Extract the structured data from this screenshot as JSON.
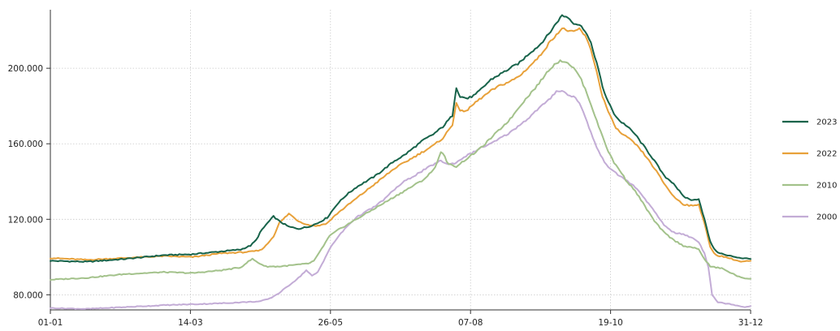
{
  "chart_data": {
    "type": "line",
    "title": "",
    "xlabel": "",
    "ylabel": "",
    "x_tick_labels": [
      "01-01",
      "14-03",
      "26-05",
      "07-08",
      "19-10",
      "31-12"
    ],
    "y_tick_labels": [
      "80.000",
      "120.000",
      "160.000",
      "200.000"
    ],
    "y_ticks": [
      80000,
      120000,
      160000,
      200000
    ],
    "ylim": [
      72000,
      231000
    ],
    "xlim": [
      1,
      365
    ],
    "grid": true,
    "legend_position": "right",
    "series": [
      {
        "name": "2023",
        "color": "#17634a",
        "points": [
          [
            1,
            98000
          ],
          [
            20,
            97500
          ],
          [
            40,
            99000
          ],
          [
            60,
            101000
          ],
          [
            75,
            101500
          ],
          [
            90,
            103000
          ],
          [
            100,
            104000
          ],
          [
            105,
            106000
          ],
          [
            108,
            109000
          ],
          [
            110,
            113000
          ],
          [
            113,
            117000
          ],
          [
            117,
            121500
          ],
          [
            120,
            119000
          ],
          [
            125,
            116000
          ],
          [
            130,
            115000
          ],
          [
            135,
            116000
          ],
          [
            140,
            118000
          ],
          [
            145,
            121000
          ],
          [
            150,
            128000
          ],
          [
            155,
            133000
          ],
          [
            160,
            137000
          ],
          [
            165,
            140000
          ],
          [
            170,
            143000
          ],
          [
            175,
            147000
          ],
          [
            180,
            151000
          ],
          [
            185,
            154000
          ],
          [
            190,
            158000
          ],
          [
            195,
            162000
          ],
          [
            200,
            165000
          ],
          [
            205,
            169000
          ],
          [
            210,
            175000
          ],
          [
            212,
            190000
          ],
          [
            214,
            185000
          ],
          [
            218,
            184000
          ],
          [
            222,
            186000
          ],
          [
            226,
            190000
          ],
          [
            230,
            194000
          ],
          [
            235,
            197000
          ],
          [
            240,
            200000
          ],
          [
            245,
            203000
          ],
          [
            250,
            208000
          ],
          [
            255,
            212000
          ],
          [
            260,
            218000
          ],
          [
            264,
            224000
          ],
          [
            267,
            228000
          ],
          [
            270,
            227000
          ],
          [
            273,
            224000
          ],
          [
            276,
            223000
          ],
          [
            279,
            220000
          ],
          [
            282,
            213000
          ],
          [
            285,
            203000
          ],
          [
            288,
            190000
          ],
          [
            291,
            182000
          ],
          [
            294,
            176000
          ],
          [
            297,
            172000
          ],
          [
            300,
            170000
          ],
          [
            305,
            165000
          ],
          [
            310,
            158000
          ],
          [
            315,
            151000
          ],
          [
            320,
            143000
          ],
          [
            325,
            139000
          ],
          [
            330,
            132000
          ],
          [
            335,
            130000
          ],
          [
            338,
            131000
          ],
          [
            341,
            120000
          ],
          [
            344,
            108000
          ],
          [
            347,
            103000
          ],
          [
            352,
            101000
          ],
          [
            360,
            99500
          ],
          [
            365,
            99000
          ]
        ]
      },
      {
        "name": "2022",
        "color": "#e8a13a",
        "points": [
          [
            1,
            99500
          ],
          [
            20,
            98500
          ],
          [
            40,
            99500
          ],
          [
            60,
            100500
          ],
          [
            75,
            100000
          ],
          [
            90,
            102000
          ],
          [
            100,
            102500
          ],
          [
            105,
            102800
          ],
          [
            110,
            103500
          ],
          [
            113,
            106000
          ],
          [
            117,
            111000
          ],
          [
            120,
            118000
          ],
          [
            125,
            123000
          ],
          [
            130,
            119000
          ],
          [
            135,
            117000
          ],
          [
            140,
            116500
          ],
          [
            145,
            118000
          ],
          [
            150,
            123000
          ],
          [
            155,
            127000
          ],
          [
            160,
            131000
          ],
          [
            165,
            135000
          ],
          [
            170,
            139000
          ],
          [
            175,
            143000
          ],
          [
            180,
            147000
          ],
          [
            185,
            150000
          ],
          [
            190,
            153000
          ],
          [
            195,
            156000
          ],
          [
            200,
            159000
          ],
          [
            205,
            163000
          ],
          [
            210,
            170000
          ],
          [
            212,
            182000
          ],
          [
            214,
            177000
          ],
          [
            218,
            178000
          ],
          [
            222,
            182000
          ],
          [
            226,
            185000
          ],
          [
            230,
            188000
          ],
          [
            235,
            191000
          ],
          [
            240,
            193000
          ],
          [
            245,
            196000
          ],
          [
            250,
            201000
          ],
          [
            255,
            206000
          ],
          [
            260,
            213000
          ],
          [
            264,
            218000
          ],
          [
            267,
            221000
          ],
          [
            270,
            220000
          ],
          [
            273,
            219000
          ],
          [
            276,
            221000
          ],
          [
            279,
            217000
          ],
          [
            282,
            210000
          ],
          [
            285,
            198000
          ],
          [
            288,
            185000
          ],
          [
            291,
            177000
          ],
          [
            294,
            170000
          ],
          [
            297,
            166000
          ],
          [
            300,
            164000
          ],
          [
            305,
            160000
          ],
          [
            310,
            154000
          ],
          [
            315,
            147000
          ],
          [
            320,
            139000
          ],
          [
            325,
            132000
          ],
          [
            330,
            128000
          ],
          [
            335,
            127000
          ],
          [
            338,
            128000
          ],
          [
            341,
            118000
          ],
          [
            344,
            105000
          ],
          [
            347,
            101000
          ],
          [
            352,
            100000
          ],
          [
            360,
            97500
          ],
          [
            365,
            98000
          ]
        ]
      },
      {
        "name": "2010",
        "color": "#a3c28b",
        "points": [
          [
            1,
            88000
          ],
          [
            20,
            89000
          ],
          [
            40,
            91000
          ],
          [
            60,
            92000
          ],
          [
            75,
            91500
          ],
          [
            90,
            93000
          ],
          [
            100,
            94500
          ],
          [
            103,
            97000
          ],
          [
            106,
            99000
          ],
          [
            109,
            97000
          ],
          [
            113,
            95000
          ],
          [
            120,
            95000
          ],
          [
            130,
            96000
          ],
          [
            135,
            96500
          ],
          [
            138,
            98000
          ],
          [
            140,
            101000
          ],
          [
            143,
            106000
          ],
          [
            146,
            111000
          ],
          [
            150,
            114000
          ],
          [
            155,
            117000
          ],
          [
            160,
            120000
          ],
          [
            165,
            123000
          ],
          [
            170,
            126000
          ],
          [
            175,
            129000
          ],
          [
            180,
            132000
          ],
          [
            185,
            135000
          ],
          [
            190,
            138000
          ],
          [
            195,
            141000
          ],
          [
            200,
            146000
          ],
          [
            202,
            150000
          ],
          [
            204,
            156000
          ],
          [
            206,
            153000
          ],
          [
            208,
            149000
          ],
          [
            212,
            148000
          ],
          [
            216,
            151000
          ],
          [
            220,
            154000
          ],
          [
            225,
            158000
          ],
          [
            230,
            163000
          ],
          [
            235,
            168000
          ],
          [
            240,
            173000
          ],
          [
            245,
            180000
          ],
          [
            250,
            186000
          ],
          [
            255,
            192000
          ],
          [
            260,
            199000
          ],
          [
            264,
            203000
          ],
          [
            267,
            204000
          ],
          [
            270,
            203000
          ],
          [
            273,
            200000
          ],
          [
            276,
            196000
          ],
          [
            279,
            189000
          ],
          [
            282,
            181000
          ],
          [
            285,
            172000
          ],
          [
            288,
            164000
          ],
          [
            291,
            156000
          ],
          [
            294,
            150000
          ],
          [
            297,
            146000
          ],
          [
            300,
            141000
          ],
          [
            305,
            135000
          ],
          [
            310,
            127000
          ],
          [
            315,
            119000
          ],
          [
            320,
            113000
          ],
          [
            325,
            109000
          ],
          [
            330,
            106000
          ],
          [
            335,
            105000
          ],
          [
            338,
            104000
          ],
          [
            341,
            99000
          ],
          [
            344,
            95000
          ],
          [
            350,
            94000
          ],
          [
            360,
            89000
          ],
          [
            365,
            88500
          ]
        ]
      },
      {
        "name": "2000",
        "color": "#c3acd6",
        "points": [
          [
            1,
            73000
          ],
          [
            20,
            72500
          ],
          [
            40,
            73500
          ],
          [
            60,
            74500
          ],
          [
            75,
            75000
          ],
          [
            90,
            75500
          ],
          [
            100,
            76000
          ],
          [
            110,
            76500
          ],
          [
            115,
            78000
          ],
          [
            120,
            81000
          ],
          [
            125,
            85000
          ],
          [
            130,
            89000
          ],
          [
            134,
            93000
          ],
          [
            137,
            90000
          ],
          [
            140,
            92000
          ],
          [
            143,
            98000
          ],
          [
            146,
            104000
          ],
          [
            150,
            110000
          ],
          [
            155,
            116000
          ],
          [
            160,
            121000
          ],
          [
            165,
            124000
          ],
          [
            170,
            127000
          ],
          [
            175,
            131000
          ],
          [
            180,
            136000
          ],
          [
            185,
            140000
          ],
          [
            190,
            143000
          ],
          [
            195,
            146000
          ],
          [
            200,
            149000
          ],
          [
            204,
            151000
          ],
          [
            208,
            149000
          ],
          [
            212,
            150000
          ],
          [
            216,
            153000
          ],
          [
            220,
            155000
          ],
          [
            225,
            158000
          ],
          [
            230,
            160000
          ],
          [
            235,
            163000
          ],
          [
            240,
            166000
          ],
          [
            245,
            170000
          ],
          [
            250,
            174000
          ],
          [
            255,
            179000
          ],
          [
            260,
            183000
          ],
          [
            264,
            188000
          ],
          [
            267,
            188000
          ],
          [
            270,
            186000
          ],
          [
            273,
            185000
          ],
          [
            276,
            182000
          ],
          [
            279,
            174000
          ],
          [
            282,
            166000
          ],
          [
            285,
            158000
          ],
          [
            288,
            152000
          ],
          [
            291,
            148000
          ],
          [
            294,
            145000
          ],
          [
            297,
            143000
          ],
          [
            300,
            141000
          ],
          [
            305,
            137000
          ],
          [
            310,
            131000
          ],
          [
            315,
            124000
          ],
          [
            320,
            117000
          ],
          [
            325,
            113000
          ],
          [
            330,
            112000
          ],
          [
            335,
            110000
          ],
          [
            338,
            108000
          ],
          [
            341,
            102000
          ],
          [
            343,
            95000
          ],
          [
            345,
            80000
          ],
          [
            348,
            76000
          ],
          [
            355,
            75000
          ],
          [
            362,
            73500
          ],
          [
            365,
            74000
          ]
        ]
      }
    ]
  }
}
